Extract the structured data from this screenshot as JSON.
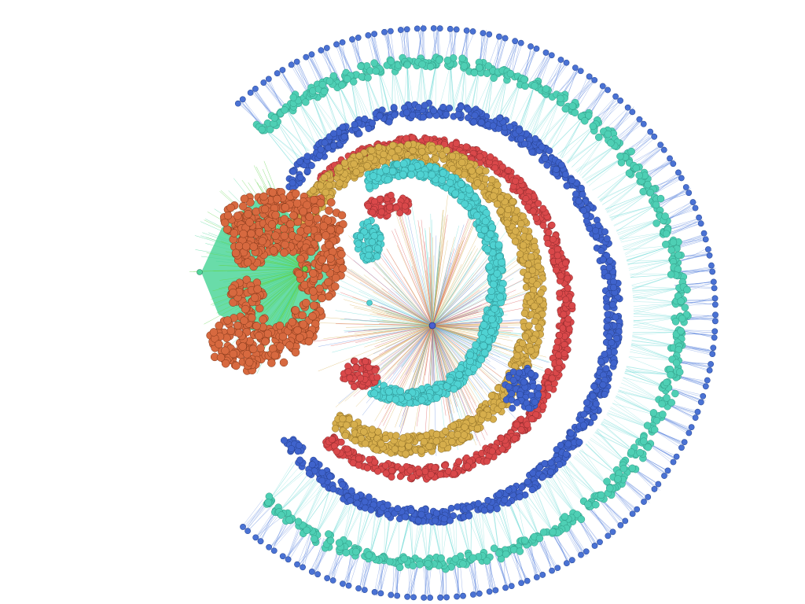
{
  "figure": {
    "kind": "radial-network-graph",
    "labels": []
  },
  "palette": {
    "background": "#ffffff",
    "outer-blue": "#4a72d4",
    "outer-teal": "#4ecfb4",
    "blue-ring": "#3f63cc",
    "red-ring": "#d9484a",
    "yellow-ring": "#d6ae4c",
    "cyan-ring": "#4fd2d2",
    "orange-cluster": "#d7693f",
    "green-fan": "#4fd69a",
    "lime-fan": "#63d44e",
    "center-node": "#4a5fd0",
    "edge-cyan": "#63d8d4",
    "edge-blue": "#5a84dc"
  },
  "groups": [
    {
      "id": "outer-spokes",
      "color": "outer-blue",
      "count": 80
    },
    {
      "id": "teal-cluster-ring",
      "color": "outer-teal",
      "count": 80
    },
    {
      "id": "blue-ring",
      "color": "blue-ring"
    },
    {
      "id": "red-ring",
      "color": "red-ring"
    },
    {
      "id": "yellow-ring",
      "color": "yellow-ring"
    },
    {
      "id": "cyan-ring",
      "color": "cyan-ring"
    },
    {
      "id": "orange-cluster",
      "color": "orange-cluster"
    },
    {
      "id": "green-fan",
      "color": "green-fan"
    }
  ]
}
